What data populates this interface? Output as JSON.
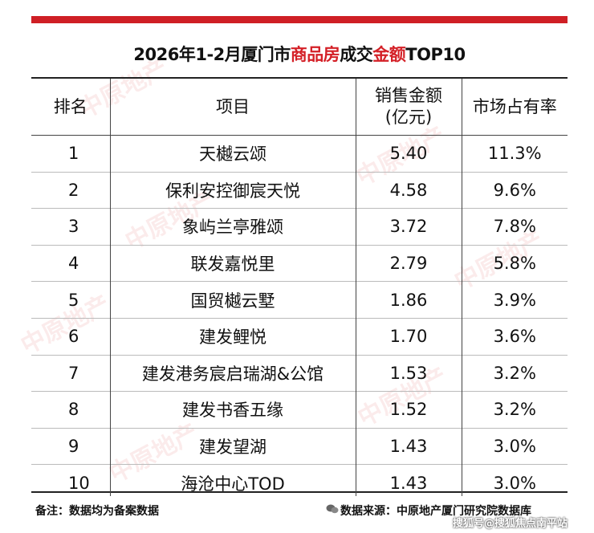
{
  "title": {
    "prefix": "2026年1-2月厦门市",
    "highlight1": "商品房",
    "middle": "成交",
    "highlight2": "金额",
    "suffix": "TOP10"
  },
  "columns": {
    "rank": "排名",
    "project": "项目",
    "sales_line1": "销售金额",
    "sales_line2": "(亿元)",
    "share": "市场占有率"
  },
  "rows": [
    {
      "rank": "1",
      "project": "天樾云颂",
      "sales": "5.40",
      "share": "11.3%"
    },
    {
      "rank": "2",
      "project": "保利安控御宸天悦",
      "sales": "4.58",
      "share": "9.6%"
    },
    {
      "rank": "3",
      "project": "象屿兰亭雅颂",
      "sales": "3.72",
      "share": "7.8%"
    },
    {
      "rank": "4",
      "project": "联发嘉悦里",
      "sales": "2.79",
      "share": "5.8%"
    },
    {
      "rank": "5",
      "project": "国贸樾云墅",
      "sales": "1.86",
      "share": "3.9%"
    },
    {
      "rank": "6",
      "project": "建发鲤悦",
      "sales": "1.70",
      "share": "3.6%"
    },
    {
      "rank": "7",
      "project": "建发港务宸启瑞湖&公馆",
      "sales": "1.53",
      "share": "3.2%"
    },
    {
      "rank": "8",
      "project": "建发书香五缘",
      "sales": "1.52",
      "share": "3.2%"
    },
    {
      "rank": "9",
      "project": "建发望湖",
      "sales": "1.43",
      "share": "3.0%"
    },
    {
      "rank": "10",
      "project": "海沧中心TOD",
      "sales": "1.43",
      "share": "3.0%"
    }
  ],
  "footer": {
    "note": "备注：数据均为备案数据",
    "source": "数据来源：中原地产厦门研究院数据库",
    "credit": "搜狐号@搜狐焦点南平站"
  },
  "watermark": "中原地产",
  "colors": {
    "accent": "#cf1f25",
    "highlight_text": "#d42027"
  }
}
